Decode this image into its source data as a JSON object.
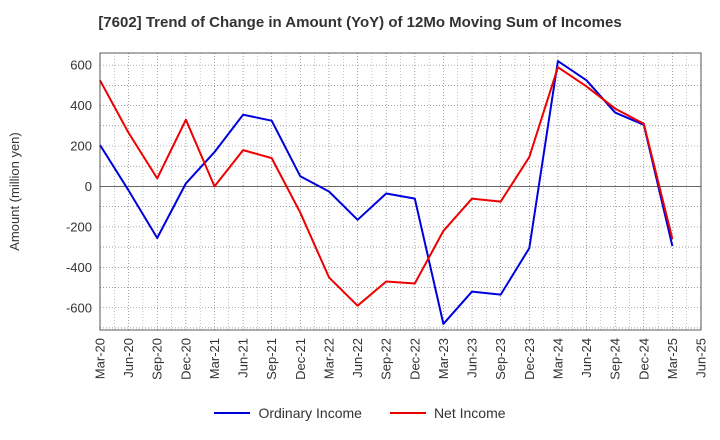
{
  "chart_data": {
    "type": "line",
    "title": "[7602]  Trend of Change in Amount (YoY) of 12Mo Moving Sum of Incomes",
    "ylabel": "Amount (million yen)",
    "xlabel": "",
    "ylim": [
      -710,
      660
    ],
    "yticks": [
      -600,
      -400,
      -200,
      0,
      200,
      400,
      600
    ],
    "categories": [
      "Mar-20",
      "Jun-20",
      "Sep-20",
      "Dec-20",
      "Mar-21",
      "Jun-21",
      "Sep-21",
      "Dec-21",
      "Mar-22",
      "Jun-22",
      "Sep-22",
      "Dec-22",
      "Mar-23",
      "Jun-23",
      "Sep-23",
      "Dec-23",
      "Mar-24",
      "Jun-24",
      "Sep-24",
      "Dec-24",
      "Mar-25",
      "Jun-25"
    ],
    "grid": true,
    "legend_position": "bottom-center",
    "series": [
      {
        "name": "Ordinary Income",
        "color": "#0000dd",
        "values": [
          205,
          -20,
          -255,
          15,
          170,
          355,
          325,
          50,
          -25,
          -165,
          -35,
          -60,
          -680,
          -520,
          -535,
          -305,
          620,
          525,
          365,
          305,
          -295,
          null
        ]
      },
      {
        "name": "Net Income",
        "color": "#ee0000",
        "values": [
          525,
          265,
          40,
          330,
          0,
          180,
          140,
          -130,
          -450,
          -590,
          -470,
          -480,
          -220,
          -60,
          -75,
          145,
          590,
          495,
          385,
          310,
          -260,
          null
        ]
      }
    ]
  }
}
